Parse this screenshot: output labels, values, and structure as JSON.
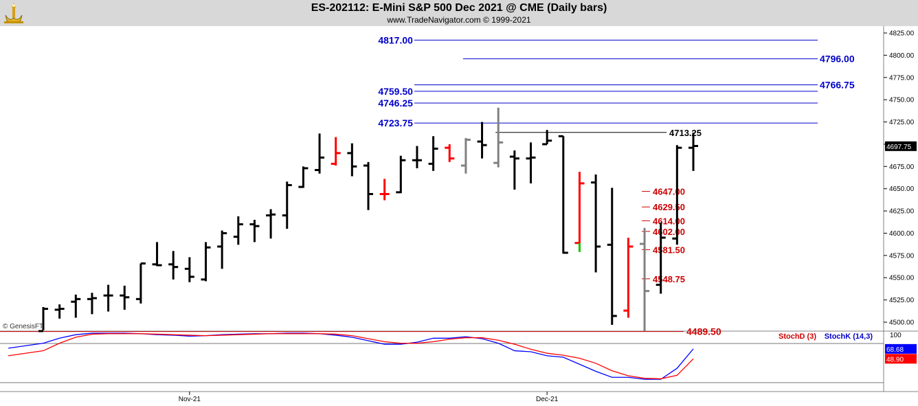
{
  "header": {
    "title": "ES-202112:  E-Mini S&P 500 Dec 2021 @ CME  (Daily bars)",
    "subtitle": "www.TradeNavigator.com © 1999-2021",
    "logo_icon": "trade-navigator-logo-icon"
  },
  "watermark": "© GenesisFT",
  "colors": {
    "up_bar": "#000000",
    "down_bar": "#ff0000",
    "neutral_bar": "#808080",
    "blue_level": "#0000cc",
    "red_level": "#cc0000",
    "stoch_k": "#0000ff",
    "stoch_d": "#ff0000",
    "last_price_bg": "#000000"
  },
  "chart_data": [
    {
      "type": "ohlc",
      "title": "ES-202112:  E-Mini S&P 500 Dec 2021 @ CME  (Daily bars)",
      "ylim": [
        4489.5,
        4825
      ],
      "y_ticks": [
        4500,
        4525,
        4550,
        4575,
        4600,
        4625,
        4650,
        4675,
        4700,
        4725,
        4750,
        4775,
        4800,
        4825
      ],
      "y_tick_labels": [
        "4500.00",
        "4525.00",
        "4550.00",
        "4575.00",
        "4600.00",
        "4625.00",
        "4650.00",
        "4675.00",
        "4700.00",
        "4725.00",
        "4750.00",
        "4775.00",
        "4800.00",
        "4825.00"
      ],
      "x_labels": [
        {
          "label": "Nov-21",
          "bar_index": 9
        },
        {
          "label": "Dec-21",
          "bar_index": 31
        }
      ],
      "last_price": "4697.75",
      "bars": [
        {
          "o": 4490,
          "h": 4517,
          "l": 4491,
          "c": 4515,
          "color": "up"
        },
        {
          "o": 4514,
          "h": 4520,
          "l": 4504,
          "c": 4515,
          "color": "up"
        },
        {
          "o": 4523,
          "h": 4531,
          "l": 4505,
          "c": 4526,
          "color": "up"
        },
        {
          "o": 4526,
          "h": 4533,
          "l": 4509,
          "c": 4527,
          "color": "up"
        },
        {
          "o": 4530,
          "h": 4542,
          "l": 4512,
          "c": 4530,
          "color": "up"
        },
        {
          "o": 4530,
          "h": 4541,
          "l": 4514,
          "c": 4528,
          "color": "up"
        },
        {
          "o": 4526,
          "h": 4566,
          "l": 4521,
          "c": 4566,
          "color": "up"
        },
        {
          "o": 4565,
          "h": 4590,
          "l": 4563,
          "c": 4564,
          "color": "up"
        },
        {
          "o": 4565,
          "h": 4580,
          "l": 4548,
          "c": 4562,
          "color": "up"
        },
        {
          "o": 4560,
          "h": 4573,
          "l": 4545,
          "c": 4551,
          "color": "up"
        },
        {
          "o": 4548,
          "h": 4590,
          "l": 4546,
          "c": 4584,
          "color": "up"
        },
        {
          "o": 4585,
          "h": 4603,
          "l": 4560,
          "c": 4600,
          "color": "up"
        },
        {
          "o": 4596,
          "h": 4619,
          "l": 4587,
          "c": 4610,
          "color": "up"
        },
        {
          "o": 4610,
          "h": 4615,
          "l": 4590,
          "c": 4608,
          "color": "up"
        },
        {
          "o": 4620,
          "h": 4627,
          "l": 4594,
          "c": 4621,
          "color": "up"
        },
        {
          "o": 4620,
          "h": 4658,
          "l": 4605,
          "c": 4654,
          "color": "up"
        },
        {
          "o": 4652,
          "h": 4675,
          "l": 4651,
          "c": 4673,
          "color": "up"
        },
        {
          "o": 4671,
          "h": 4712,
          "l": 4667,
          "c": 4685,
          "color": "up"
        },
        {
          "o": 4678,
          "h": 4708,
          "l": 4676,
          "c": 4690,
          "color": "down"
        },
        {
          "o": 4690,
          "h": 4701,
          "l": 4664,
          "c": 4675,
          "color": "up"
        },
        {
          "o": 4676,
          "h": 4680,
          "l": 4626,
          "c": 4644,
          "color": "up"
        },
        {
          "o": 4644,
          "h": 4661,
          "l": 4637,
          "c": 4644,
          "color": "down"
        },
        {
          "o": 4646,
          "h": 4687,
          "l": 4645,
          "c": 4682,
          "color": "up"
        },
        {
          "o": 4682,
          "h": 4698,
          "l": 4673,
          "c": 4682,
          "color": "up"
        },
        {
          "o": 4678,
          "h": 4709,
          "l": 4670,
          "c": 4695,
          "color": "up"
        },
        {
          "o": 4696,
          "h": 4700,
          "l": 4680,
          "c": 4684,
          "color": "down"
        },
        {
          "o": 4676,
          "h": 4707,
          "l": 4667,
          "c": 4705,
          "color": "neutral"
        },
        {
          "o": 4703,
          "h": 4725,
          "l": 4684,
          "c": 4699,
          "color": "up"
        },
        {
          "o": 4679,
          "h": 4741,
          "l": 4674,
          "c": 4702,
          "color": "neutral"
        },
        {
          "o": 4686,
          "h": 4693,
          "l": 4649,
          "c": 4684,
          "color": "up"
        },
        {
          "o": 4684,
          "h": 4702,
          "l": 4656,
          "c": 4685,
          "color": "up"
        },
        {
          "o": 4700,
          "h": 4716,
          "l": 4700,
          "c": 4704,
          "color": "up"
        },
        {
          "o": 4709,
          "h": 4709,
          "l": 4577,
          "c": 4578,
          "color": "up"
        },
        {
          "o": 4589,
          "h": 4669,
          "l": 4579,
          "c": 4656,
          "color": "down"
        },
        {
          "o": 4657,
          "h": 4666,
          "l": 4556,
          "c": 4585,
          "color": "up"
        },
        {
          "o": 4587,
          "h": 4651,
          "l": 4497,
          "c": 4507,
          "color": "up"
        },
        {
          "o": 4513,
          "h": 4595,
          "l": 4505,
          "c": 4585,
          "color": "down"
        },
        {
          "o": 4588,
          "h": 4606,
          "l": 4490,
          "c": 4535,
          "color": "neutral"
        },
        {
          "o": 4542,
          "h": 4612,
          "l": 4532,
          "c": 4595,
          "color": "up"
        },
        {
          "o": 4594,
          "h": 4699,
          "l": 4587,
          "c": 4696,
          "color": "up"
        },
        {
          "o": 4696,
          "h": 4713,
          "l": 4670,
          "c": 4698,
          "color": "up"
        }
      ],
      "levels": [
        {
          "value": 4817.0,
          "label": "4817.00",
          "color": "blue",
          "from_bar": 23,
          "label_side": "left"
        },
        {
          "value": 4796.0,
          "label": "4796.00",
          "color": "blue",
          "from_bar": 26,
          "label_side": "right"
        },
        {
          "value": 4766.75,
          "label": "4766.75",
          "color": "blue",
          "from_bar": 23,
          "label_side": "right"
        },
        {
          "value": 4759.5,
          "label": "4759.50",
          "color": "blue",
          "from_bar": 23,
          "label_side": "left"
        },
        {
          "value": 4746.25,
          "label": "4746.25",
          "color": "blue",
          "from_bar": 23,
          "label_side": "left"
        },
        {
          "value": 4723.75,
          "label": "4723.75",
          "color": "blue",
          "from_bar": 23,
          "label_side": "left"
        },
        {
          "value": 4713.25,
          "label": "4713.25",
          "color": "black",
          "from_bar": 28,
          "label_side": "right"
        },
        {
          "value": 4647.0,
          "label": "4647.00",
          "color": "red",
          "from_bar": 37,
          "label_side": "right"
        },
        {
          "value": 4629.5,
          "label": "4629.50",
          "color": "red",
          "from_bar": 37,
          "label_side": "right"
        },
        {
          "value": 4614.0,
          "label": "4614.00",
          "color": "red",
          "from_bar": 37,
          "label_side": "right"
        },
        {
          "value": 4602.0,
          "label": "4602.00",
          "color": "red",
          "from_bar": 37,
          "label_side": "right"
        },
        {
          "value": 4581.5,
          "label": "4581.50",
          "color": "red",
          "from_bar": 37,
          "label_side": "right"
        },
        {
          "value": 4548.75,
          "label": "4548.75",
          "color": "red",
          "from_bar": 37,
          "label_side": "right"
        },
        {
          "value": 4489.5,
          "label": "4489.50",
          "color": "red",
          "from_bar": 0,
          "label_side": "right"
        }
      ]
    },
    {
      "type": "line",
      "title": "",
      "ylim": [
        0,
        100
      ],
      "y_tick_labels": [
        "100"
      ],
      "legend": [
        "StochD (3)",
        "StochK (14,3)"
      ],
      "series": [
        {
          "name": "StochK (14,3)",
          "color": "blue",
          "last_label": "68.68",
          "values": [
            80,
            90,
            97,
            100,
            100,
            100,
            99,
            97,
            96,
            94,
            95,
            97,
            98,
            99,
            99,
            100,
            100,
            99,
            96,
            92,
            85,
            78,
            78,
            82,
            90,
            90,
            93,
            89,
            80,
            65,
            63,
            55,
            52,
            38,
            24,
            12,
            12,
            8,
            8,
            30,
            68.68
          ]
        },
        {
          "name": "StochD (3)",
          "color": "red",
          "last_label": "48.90",
          "values": [
            65,
            80,
            92,
            98,
            99,
            99,
            99,
            98,
            97,
            96,
            95,
            96,
            97,
            98,
            99,
            99,
            99,
            99,
            98,
            95,
            89,
            83,
            80,
            80,
            83,
            88,
            91,
            91,
            86,
            78,
            68,
            60,
            56,
            50,
            40,
            25,
            15,
            10,
            9,
            16,
            48.9
          ]
        }
      ]
    }
  ]
}
